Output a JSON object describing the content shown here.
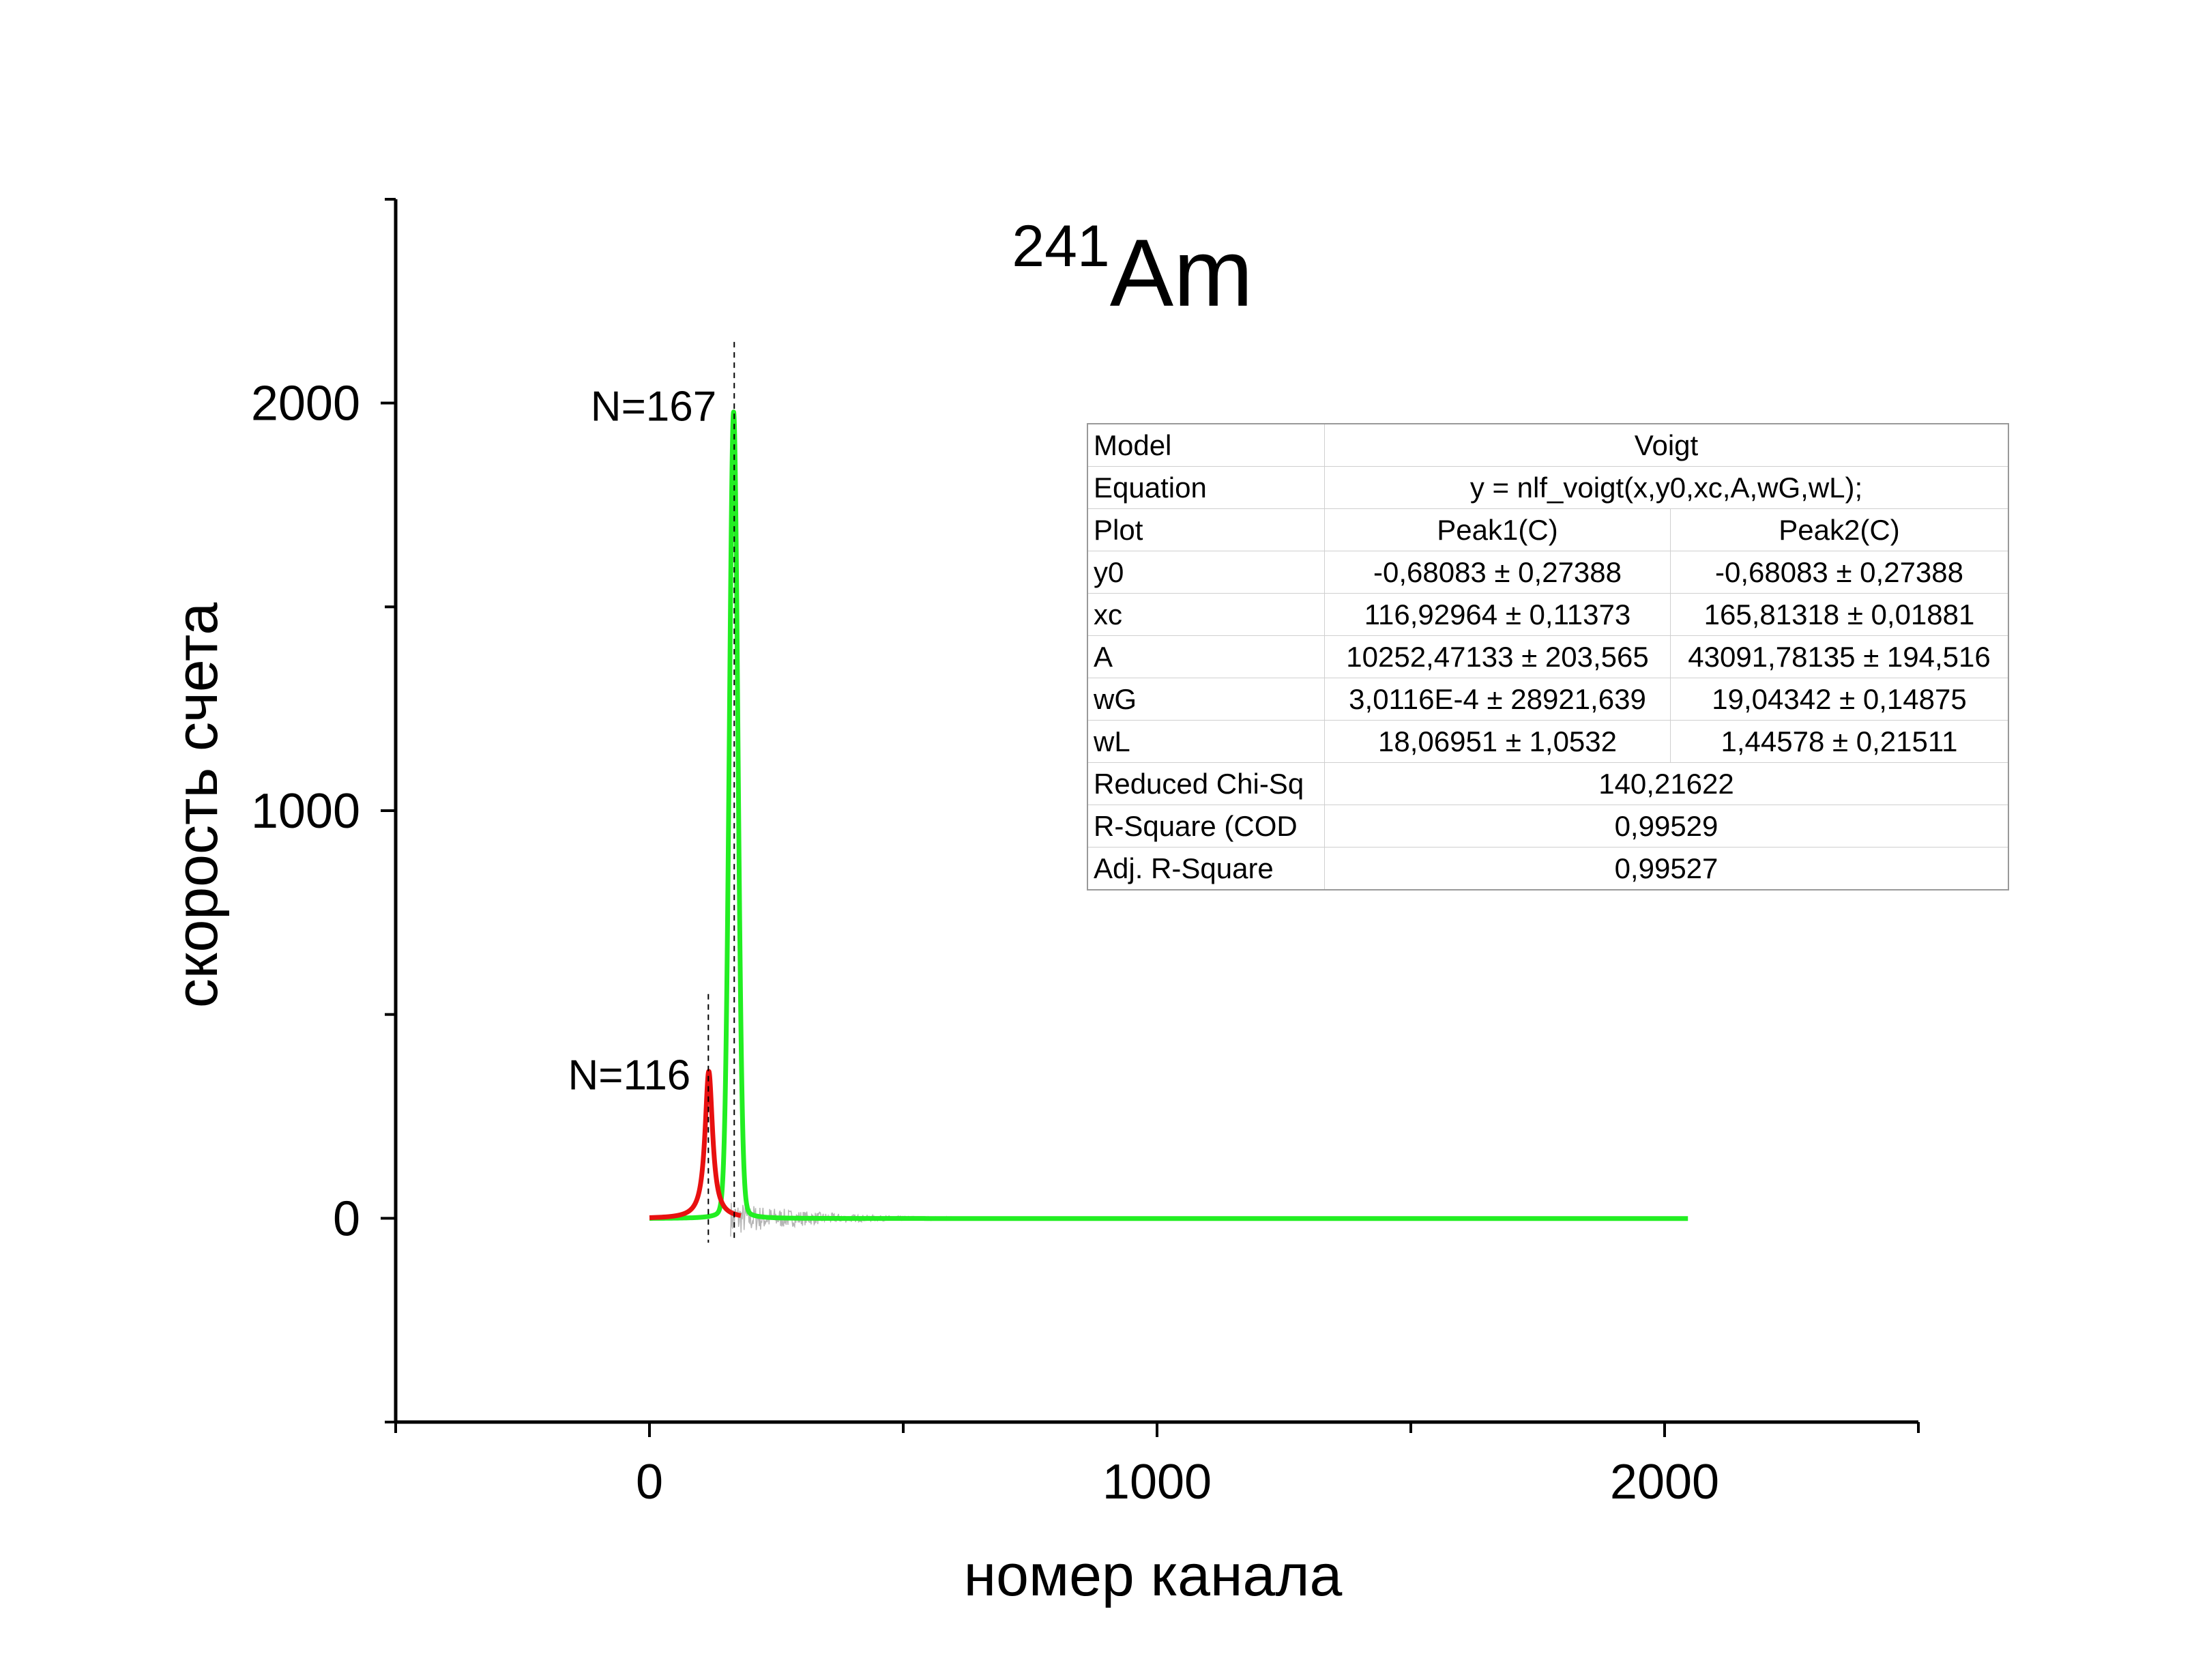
{
  "chart_data": {
    "type": "line",
    "title": {
      "superscript": "241",
      "main": "Am"
    },
    "xlabel": "номер канала",
    "ylabel": "скорость счета",
    "xlim": [
      -500,
      2500
    ],
    "ylim": [
      -500,
      2500
    ],
    "x_ticks": [
      0,
      1000,
      2000
    ],
    "y_ticks": [
      0,
      1000,
      2000
    ],
    "grid": false,
    "legend": "none",
    "series": [
      {
        "model": "voigt",
        "color": "#e81010",
        "y0": -0.68083,
        "xc": 116.92964,
        "A": 10252.47133,
        "wG": 0.00030116,
        "wL": 18.06951,
        "x_range": [
          0,
          180
        ]
      },
      {
        "model": "voigt",
        "color": "#22ee22",
        "y0": -0.68083,
        "xc": 165.81318,
        "A": 43091.78135,
        "wG": 19.04342,
        "wL": 1.44578,
        "x_range": [
          0,
          2047
        ]
      },
      {
        "model": "data-noise",
        "color": "#b5b5b5",
        "x_range": [
          160,
          700
        ]
      }
    ],
    "annotations": [
      {
        "text": "N=167",
        "x": 167,
        "y": 1990
      },
      {
        "text": "N=116",
        "x": 116,
        "y": 350
      }
    ],
    "marker_lines": [
      {
        "x": 116,
        "y_top": 550
      },
      {
        "x": 167,
        "y_top": 2150
      }
    ],
    "fit_table": {
      "rows": [
        {
          "label": "Model",
          "span": "Voigt"
        },
        {
          "label": "Equation",
          "span": "y = nlf_voigt(x,y0,xc,A,wG,wL);"
        },
        {
          "label": "Plot",
          "v1": "Peak1(C)",
          "v2": "Peak2(C)"
        },
        {
          "label": "y0",
          "v1": "-0,68083 ± 0,27388",
          "v2": "-0,68083 ± 0,27388"
        },
        {
          "label": "xc",
          "v1": "116,92964 ± 0,11373",
          "v2": "165,81318 ± 0,01881"
        },
        {
          "label": "A",
          "v1": "10252,47133 ± 203,565",
          "v2": "43091,78135 ± 194,516"
        },
        {
          "label": "wG",
          "v1": "3,0116E-4 ± 28921,639",
          "v2": "19,04342 ± 0,14875"
        },
        {
          "label": "wL",
          "v1": "18,06951 ± 1,0532",
          "v2": "1,44578 ± 0,21511"
        },
        {
          "label": "Reduced Chi-Sq",
          "span": "140,21622"
        },
        {
          "label": "R-Square (COD",
          "span": "0,99529"
        },
        {
          "label": "Adj. R-Square",
          "span": "0,99527"
        }
      ]
    }
  }
}
